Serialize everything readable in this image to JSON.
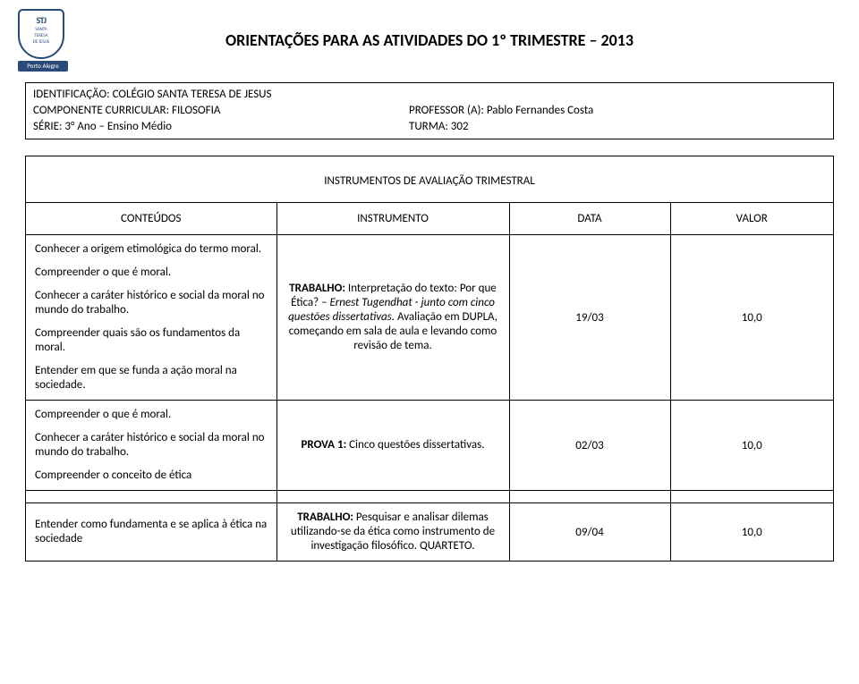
{
  "logo": {
    "letters": "STJ",
    "sub1": "SANTA",
    "sub2": "TERESA",
    "sub3": "DE JESUS",
    "city": "Porto Alegre"
  },
  "page_title": "ORIENTAÇÕES PARA AS ATIVIDADES DO 1º TRIMESTRE – 2013",
  "identification": {
    "line1": "IDENTIFICAÇÃO: COLÉGIO SANTA TERESA DE JESUS",
    "line2_left": "COMPONENTE  CURRICULAR: FILOSOFIA",
    "line2_right": "PROFESSOR (A): Pablo Fernandes Costa",
    "line3_left": "SÉRIE: 3° Ano – Ensino Médio",
    "line3_right": "TURMA: 302"
  },
  "eval_header": "INSTRUMENTOS DE AVALIAÇÃO TRIMESTRAL",
  "table": {
    "headers": {
      "conteudos": "CONTEÚDOS",
      "instrumento": "INSTRUMENTO",
      "data": "DATA",
      "valor": "VALOR"
    },
    "rows": [
      {
        "conteudos": [
          "Conhecer a origem etimológica do termo moral.",
          "Compreender o que é moral.",
          "Conhecer a caráter histórico e social da moral no mundo do trabalho.",
          "Compreender quais são os fundamentos da moral.",
          "Entender em que se funda a ação moral na sociedade."
        ],
        "instr_label": "TRABALHO:",
        "instr_pre": " Interpretação do texto: Por que Ética? – ",
        "instr_italic": "Ernest Tugendhat - junto com cinco questões dissertativas.",
        "instr_post": " Avaliação em DUPLA, começando em sala de aula e levando como revisão de tema.",
        "data": "19/03",
        "valor": "10,0"
      },
      {
        "conteudos": [
          "Compreender o que é moral.",
          "Conhecer a caráter histórico e social da moral no mundo do trabalho.",
          "Compreender o conceito de ética"
        ],
        "instr_label": "PROVA 1:",
        "instr_pre": " Cinco questões dissertativas.",
        "instr_italic": "",
        "instr_post": "",
        "data": "02/03",
        "valor": "10,0"
      },
      {
        "conteudos": [
          "Entender como fundamenta e se aplica à ética na sociedade"
        ],
        "instr_label": "TRABALHO:",
        "instr_pre": " Pesquisar e analisar dilemas utilizando-se da ética como instrumento de investigação filosófico. QUARTETO.",
        "instr_italic": "",
        "instr_post": "",
        "data": "09/04",
        "valor": "10,0"
      }
    ]
  }
}
